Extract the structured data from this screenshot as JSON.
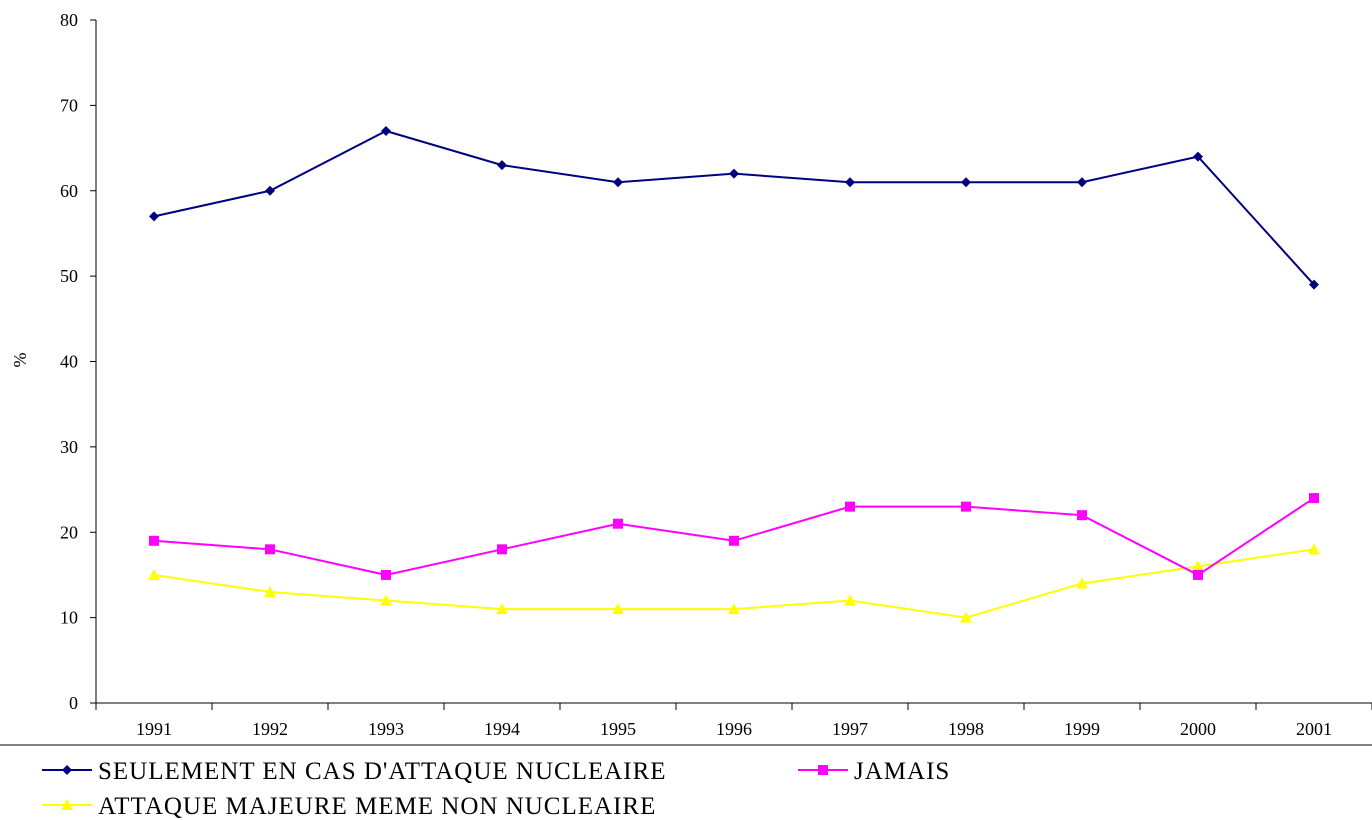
{
  "chart_data": {
    "type": "line",
    "ylabel": "%",
    "xlabel": "",
    "ylim": [
      0,
      80
    ],
    "y_ticks": [
      0,
      10,
      20,
      30,
      40,
      50,
      60,
      70,
      80
    ],
    "categories": [
      "1991",
      "1992",
      "1993",
      "1994",
      "1995",
      "1996",
      "1997",
      "1998",
      "1999",
      "2000",
      "2001"
    ],
    "series": [
      {
        "name": "SEULEMENT EN CAS D'ATTAQUE NUCLEAIRE",
        "values": [
          57,
          60,
          67,
          63,
          61,
          62,
          61,
          61,
          61,
          64,
          49
        ],
        "color": "#000080",
        "marker": "diamond"
      },
      {
        "name": "JAMAIS",
        "values": [
          19,
          18,
          15,
          18,
          21,
          19,
          23,
          23,
          22,
          15,
          24
        ],
        "color": "#ff00ff",
        "marker": "square"
      },
      {
        "name": "ATTAQUE MAJEURE MEME NON NUCLEAIRE",
        "values": [
          15,
          13,
          12,
          11,
          11,
          11,
          12,
          10,
          14,
          16,
          18
        ],
        "color": "#ffff00",
        "marker": "triangle"
      }
    ],
    "grid": false,
    "legend_position": "bottom"
  }
}
